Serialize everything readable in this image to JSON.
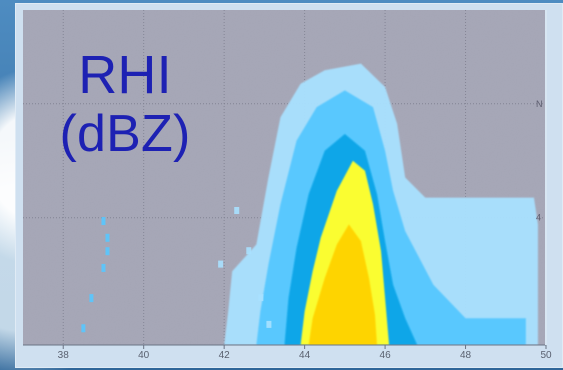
{
  "chart_data": {
    "type": "heatmap",
    "title_line_1": "RHI",
    "title_line_2": "(dBZ)",
    "x_ticks": [
      "38",
      "40",
      "42",
      "44",
      "46",
      "48",
      "50"
    ],
    "right_ticks": [
      "N",
      "4"
    ],
    "xlim": [
      37,
      50
    ],
    "colors": {
      "plot_bg": "#a7a8b8",
      "light_cyan": "#a9e1ff",
      "cyan": "#58c8ff",
      "mid_blue": "#0aa6e8",
      "yellow": "#ffff2d",
      "gold": "#ffd400",
      "title": "#1d21b3"
    },
    "echo_levels": [
      {
        "name": "outer",
        "polygon": [
          [
            42.0,
            0.0
          ],
          [
            42.1,
            0.1
          ],
          [
            42.2,
            0.22
          ],
          [
            42.8,
            0.3
          ],
          [
            43.1,
            0.5
          ],
          [
            43.4,
            0.68
          ],
          [
            43.9,
            0.78
          ],
          [
            44.5,
            0.82
          ],
          [
            45.4,
            0.84
          ],
          [
            46.0,
            0.77
          ],
          [
            46.3,
            0.66
          ],
          [
            46.5,
            0.5
          ],
          [
            47.0,
            0.44
          ],
          [
            49.7,
            0.44
          ],
          [
            49.8,
            0.36
          ],
          [
            49.8,
            0.0
          ]
        ]
      },
      {
        "name": "inner_blue",
        "polygon": [
          [
            42.8,
            0.0
          ],
          [
            42.9,
            0.1
          ],
          [
            43.1,
            0.24
          ],
          [
            43.4,
            0.42
          ],
          [
            43.8,
            0.61
          ],
          [
            44.3,
            0.71
          ],
          [
            45.0,
            0.76
          ],
          [
            45.7,
            0.71
          ],
          [
            46.0,
            0.58
          ],
          [
            46.2,
            0.46
          ],
          [
            46.5,
            0.34
          ],
          [
            47.2,
            0.18
          ],
          [
            48.0,
            0.08
          ],
          [
            49.5,
            0.08
          ],
          [
            49.5,
            0.0
          ]
        ]
      },
      {
        "name": "deep_blue",
        "polygon": [
          [
            43.5,
            0.0
          ],
          [
            43.6,
            0.14
          ],
          [
            43.8,
            0.29
          ],
          [
            44.1,
            0.45
          ],
          [
            44.5,
            0.58
          ],
          [
            45.0,
            0.63
          ],
          [
            45.5,
            0.58
          ],
          [
            45.8,
            0.45
          ],
          [
            46.0,
            0.31
          ],
          [
            46.2,
            0.18
          ],
          [
            46.5,
            0.08
          ],
          [
            46.8,
            0.0
          ]
        ]
      },
      {
        "name": "yellow",
        "polygon": [
          [
            43.9,
            0.0
          ],
          [
            44.0,
            0.1
          ],
          [
            44.2,
            0.22
          ],
          [
            44.4,
            0.32
          ],
          [
            44.8,
            0.46
          ],
          [
            45.2,
            0.55
          ],
          [
            45.5,
            0.52
          ],
          [
            45.7,
            0.42
          ],
          [
            45.9,
            0.28
          ],
          [
            46.0,
            0.14
          ],
          [
            46.1,
            0.0
          ]
        ]
      },
      {
        "name": "gold",
        "polygon": [
          [
            44.1,
            0.0
          ],
          [
            44.2,
            0.08
          ],
          [
            44.5,
            0.2
          ],
          [
            44.8,
            0.3
          ],
          [
            45.1,
            0.36
          ],
          [
            45.4,
            0.31
          ],
          [
            45.6,
            0.2
          ],
          [
            45.75,
            0.09
          ],
          [
            45.8,
            0.0
          ]
        ]
      }
    ],
    "scatter_speckles": [
      [
        39.0,
        0.37
      ],
      [
        39.1,
        0.32
      ],
      [
        39.1,
        0.28
      ],
      [
        39.0,
        0.23
      ],
      [
        38.7,
        0.14
      ],
      [
        38.5,
        0.05
      ],
      [
        41.9,
        0.24
      ],
      [
        42.3,
        0.4
      ],
      [
        42.6,
        0.28
      ],
      [
        42.9,
        0.14
      ],
      [
        43.1,
        0.06
      ],
      [
        36.9,
        0.08
      ]
    ]
  }
}
